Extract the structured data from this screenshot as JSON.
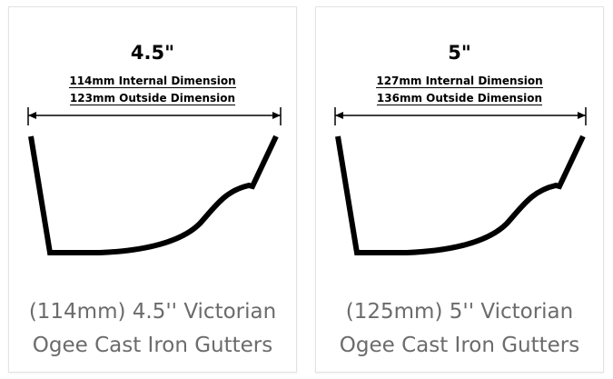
{
  "products": [
    {
      "size_label": "4.5\"",
      "internal_dimension": "114mm Internal Dimension",
      "outside_dimension": "123mm Outside Dimension",
      "caption_line1": "(114mm) 4.5'' Victorian",
      "caption_line2": "Ogee Cast Iron Gutters"
    },
    {
      "size_label": "5\"",
      "internal_dimension": "127mm Internal Dimension",
      "outside_dimension": "136mm Outside Dimension",
      "caption_line1": "(125mm) 5'' Victorian",
      "caption_line2": "Ogee Cast Iron Gutters"
    }
  ],
  "colors": {
    "caption_text": "#6b6b6b",
    "drawing": "#000000",
    "card_border": "#e3e3e3"
  }
}
